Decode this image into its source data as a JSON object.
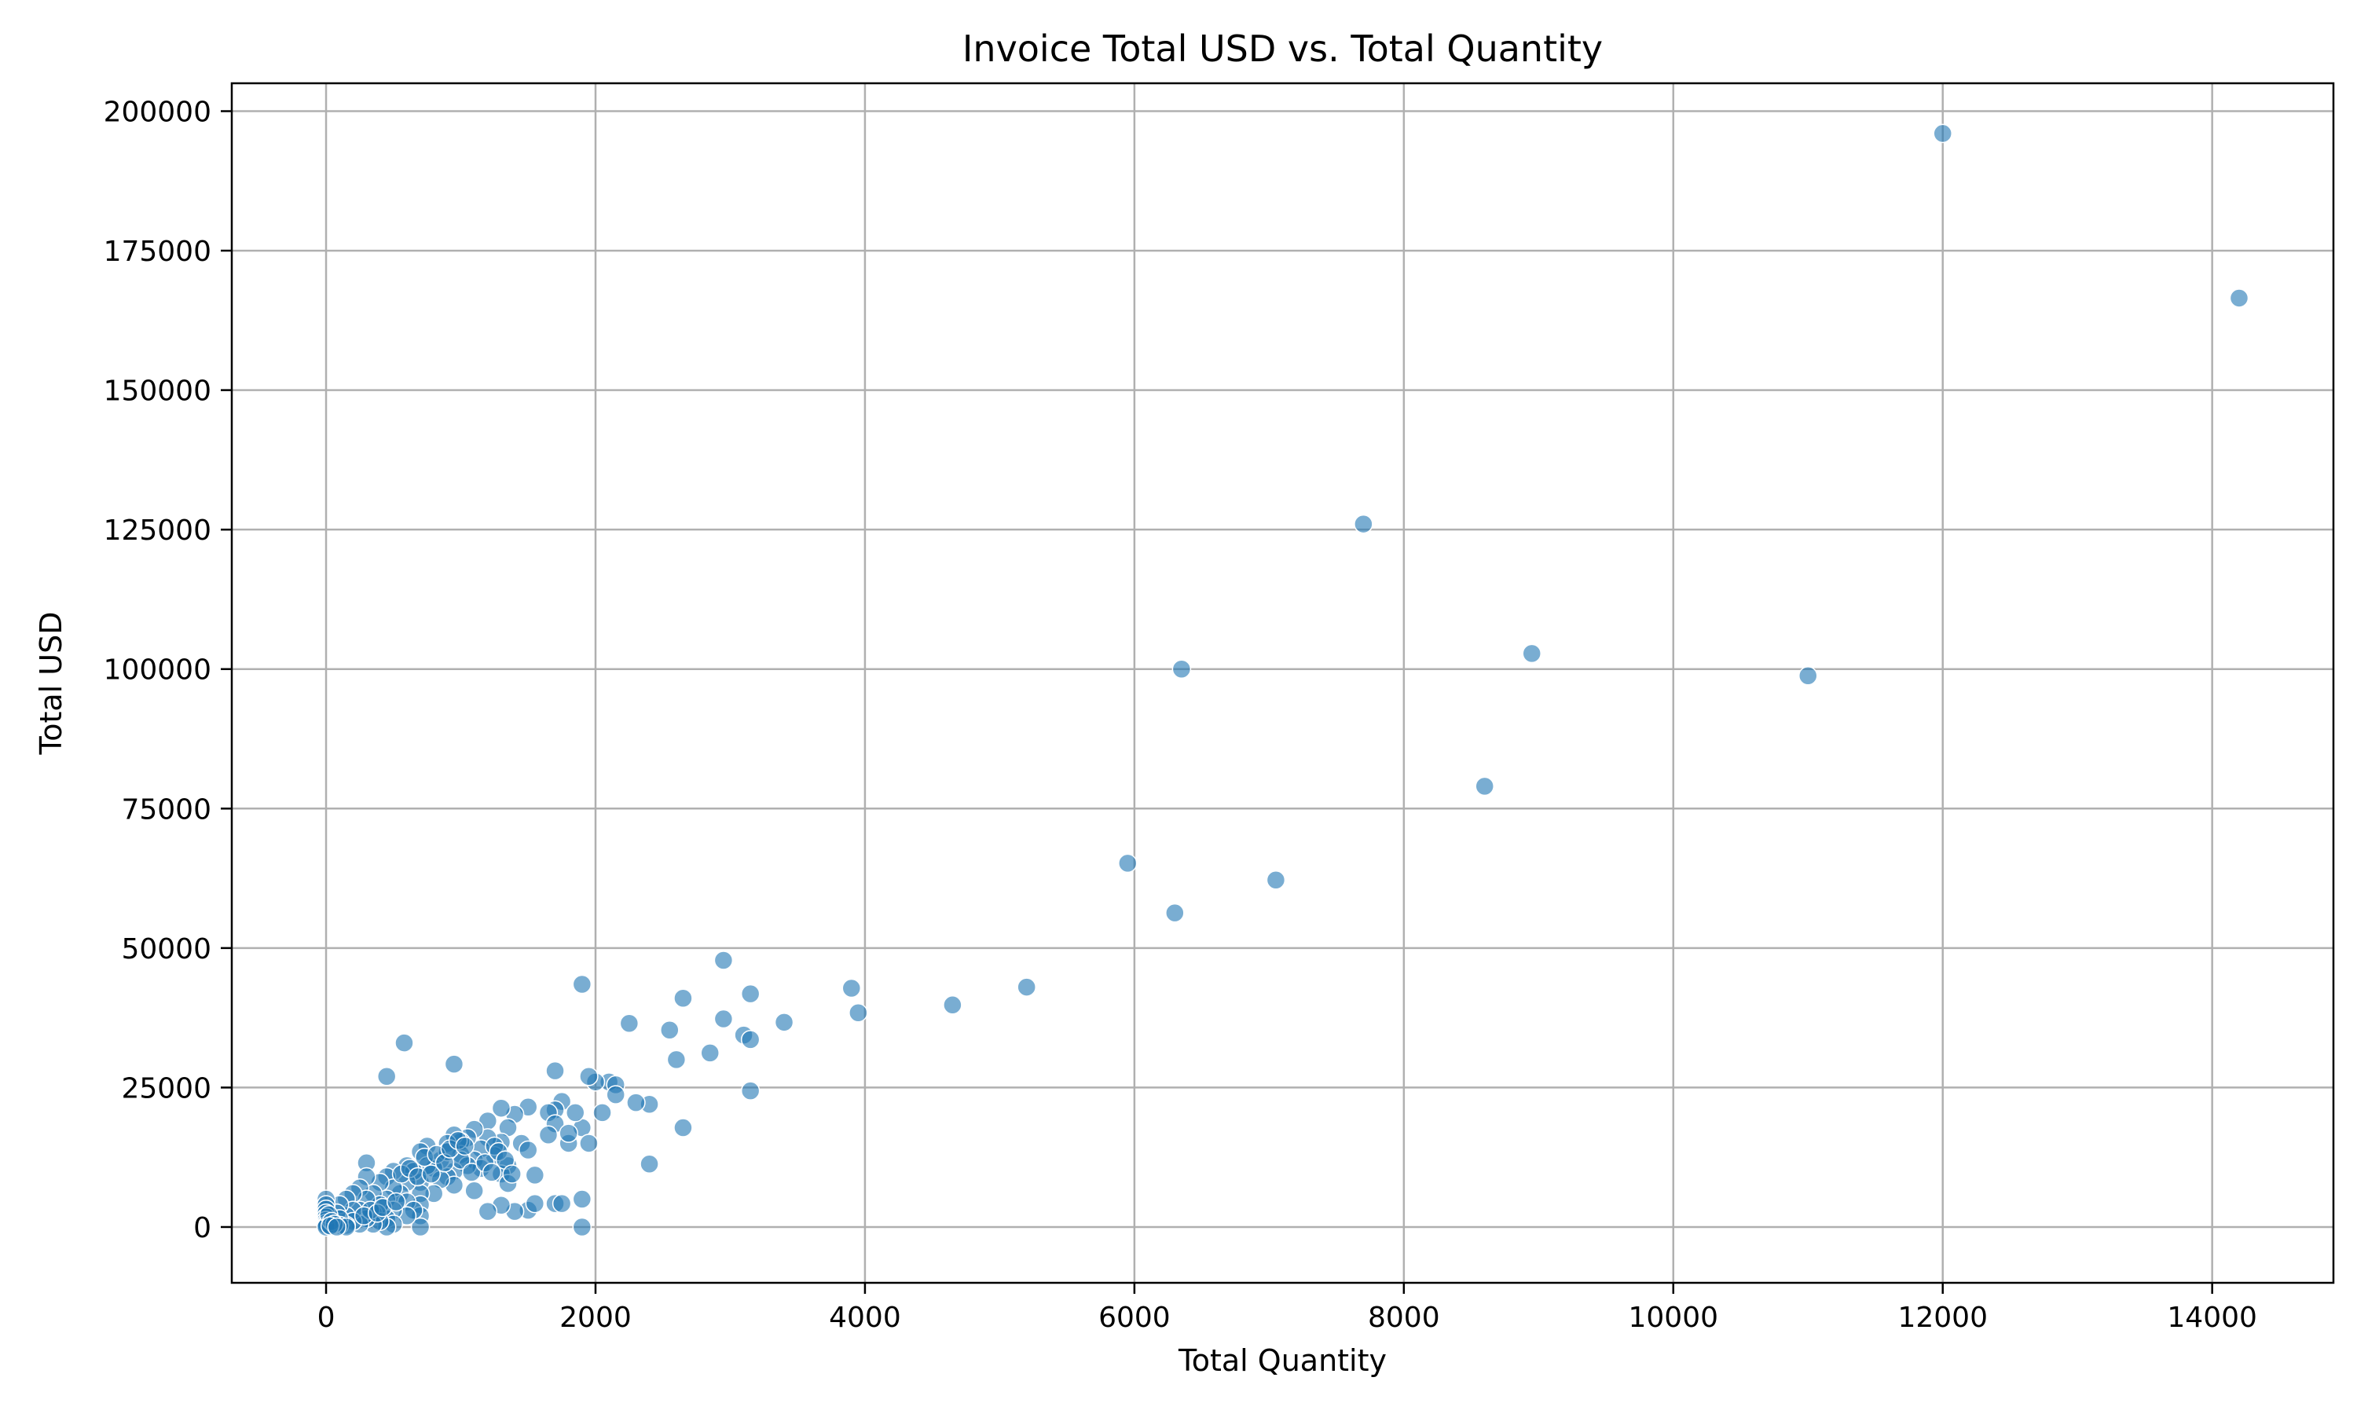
{
  "chart_data": {
    "type": "scatter",
    "title": "Invoice Total USD vs. Total Quantity",
    "xlabel": "Total Quantity",
    "ylabel": "Total USD",
    "xlim": [
      -700,
      14900
    ],
    "ylim": [
      -10000,
      205000
    ],
    "xticks": [
      0,
      2000,
      4000,
      6000,
      8000,
      10000,
      12000,
      14000
    ],
    "yticks": [
      0,
      25000,
      50000,
      75000,
      100000,
      125000,
      150000,
      175000,
      200000
    ],
    "grid": true,
    "color": "#1f77b4",
    "opacity": 0.6,
    "points": [
      [
        12000,
        196000
      ],
      [
        14200,
        166500
      ],
      [
        7700,
        126000
      ],
      [
        6350,
        100000
      ],
      [
        8950,
        102800
      ],
      [
        11000,
        98800
      ],
      [
        8600,
        79000
      ],
      [
        5950,
        65200
      ],
      [
        7050,
        62200
      ],
      [
        6300,
        56300
      ],
      [
        3900,
        42800
      ],
      [
        3950,
        38400
      ],
      [
        4650,
        39800
      ],
      [
        5200,
        43000
      ],
      [
        2950,
        47800
      ],
      [
        3150,
        41800
      ],
      [
        2650,
        41000
      ],
      [
        1900,
        43500
      ],
      [
        2250,
        36500
      ],
      [
        2550,
        35300
      ],
      [
        2950,
        37300
      ],
      [
        3100,
        34400
      ],
      [
        3150,
        33600
      ],
      [
        3400,
        36700
      ],
      [
        2850,
        31200
      ],
      [
        2600,
        30000
      ],
      [
        3150,
        24400
      ],
      [
        2650,
        17800
      ],
      [
        2400,
        11300
      ],
      [
        2400,
        22000
      ],
      [
        2300,
        22300
      ],
      [
        2100,
        26000
      ],
      [
        2150,
        25500
      ],
      [
        2150,
        23700
      ],
      [
        2000,
        26000
      ],
      [
        2050,
        20500
      ],
      [
        1950,
        27000
      ],
      [
        1900,
        17800
      ],
      [
        1950,
        15000
      ],
      [
        1900,
        5000
      ],
      [
        1900,
        0
      ],
      [
        1700,
        28000
      ],
      [
        1750,
        22500
      ],
      [
        1700,
        21000
      ],
      [
        1650,
        20500
      ],
      [
        1700,
        18500
      ],
      [
        1650,
        16500
      ],
      [
        1800,
        15000
      ],
      [
        1850,
        20500
      ],
      [
        1800,
        16800
      ],
      [
        1550,
        9300
      ],
      [
        1700,
        4200
      ],
      [
        1750,
        4200
      ],
      [
        1500,
        3000
      ],
      [
        1550,
        4200
      ],
      [
        1400,
        2800
      ],
      [
        1500,
        21500
      ],
      [
        1400,
        20200
      ],
      [
        1450,
        15000
      ],
      [
        1500,
        13800
      ],
      [
        1300,
        21300
      ],
      [
        1350,
        17800
      ],
      [
        1300,
        15200
      ],
      [
        1250,
        12800
      ],
      [
        1350,
        11000
      ],
      [
        1300,
        9500
      ],
      [
        1350,
        7800
      ],
      [
        1300,
        3900
      ],
      [
        1200,
        19000
      ],
      [
        1200,
        16000
      ],
      [
        1150,
        14000
      ],
      [
        1100,
        17500
      ],
      [
        1100,
        12000
      ],
      [
        1150,
        10500
      ],
      [
        1100,
        6500
      ],
      [
        1200,
        2800
      ],
      [
        1250,
        14500
      ],
      [
        1050,
        16000
      ],
      [
        1000,
        15300
      ],
      [
        1000,
        13000
      ],
      [
        1050,
        11000
      ],
      [
        950,
        10000
      ],
      [
        900,
        9000
      ],
      [
        950,
        7500
      ],
      [
        1000,
        12000
      ],
      [
        950,
        29200
      ],
      [
        950,
        16500
      ],
      [
        900,
        15000
      ],
      [
        850,
        12000
      ],
      [
        800,
        10500
      ],
      [
        850,
        8500
      ],
      [
        800,
        6000
      ],
      [
        900,
        13500
      ],
      [
        750,
        14500
      ],
      [
        700,
        13500
      ],
      [
        750,
        11000
      ],
      [
        700,
        8000
      ],
      [
        700,
        6000
      ],
      [
        700,
        4000
      ],
      [
        700,
        2000
      ],
      [
        700,
        0
      ],
      [
        600,
        11000
      ],
      [
        650,
        10000
      ],
      [
        600,
        8000
      ],
      [
        550,
        6000
      ],
      [
        600,
        4500
      ],
      [
        650,
        3000
      ],
      [
        600,
        2000
      ],
      [
        580,
        33000
      ],
      [
        450,
        27000
      ],
      [
        500,
        10000
      ],
      [
        450,
        9000
      ],
      [
        500,
        7000
      ],
      [
        450,
        5000
      ],
      [
        500,
        3000
      ],
      [
        450,
        1500
      ],
      [
        500,
        500
      ],
      [
        450,
        0
      ],
      [
        400,
        8000
      ],
      [
        350,
        6000
      ],
      [
        400,
        4000
      ],
      [
        350,
        2500
      ],
      [
        400,
        1000
      ],
      [
        350,
        500
      ],
      [
        300,
        11500
      ],
      [
        300,
        9000
      ],
      [
        250,
        7000
      ],
      [
        300,
        5000
      ],
      [
        250,
        3000
      ],
      [
        300,
        1500
      ],
      [
        250,
        500
      ],
      [
        200,
        6000
      ],
      [
        150,
        5000
      ],
      [
        200,
        3000
      ],
      [
        150,
        2000
      ],
      [
        200,
        1000
      ],
      [
        150,
        300
      ],
      [
        100,
        4000
      ],
      [
        80,
        2500
      ],
      [
        100,
        1500
      ],
      [
        50,
        800
      ],
      [
        100,
        300
      ],
      [
        150,
        0
      ],
      [
        0,
        5000
      ],
      [
        0,
        4000
      ],
      [
        0,
        3200
      ],
      [
        0,
        2500
      ],
      [
        0,
        1800
      ],
      [
        0,
        1200
      ],
      [
        0,
        700
      ],
      [
        0,
        300
      ],
      [
        0,
        0
      ],
      [
        20,
        2200
      ],
      [
        40,
        1000
      ],
      [
        60,
        500
      ],
      [
        30,
        200
      ],
      [
        80,
        0
      ],
      [
        330,
        3000
      ],
      [
        280,
        2000
      ],
      [
        380,
        2500
      ],
      [
        420,
        3500
      ],
      [
        520,
        4500
      ],
      [
        560,
        9500
      ],
      [
        620,
        10500
      ],
      [
        680,
        9000
      ],
      [
        730,
        12500
      ],
      [
        780,
        9500
      ],
      [
        820,
        13000
      ],
      [
        880,
        11500
      ],
      [
        920,
        14000
      ],
      [
        980,
        15500
      ],
      [
        1030,
        14500
      ],
      [
        1080,
        9800
      ],
      [
        1180,
        11500
      ],
      [
        1230,
        9800
      ],
      [
        1280,
        13500
      ],
      [
        1330,
        12000
      ],
      [
        1380,
        9500
      ]
    ]
  }
}
